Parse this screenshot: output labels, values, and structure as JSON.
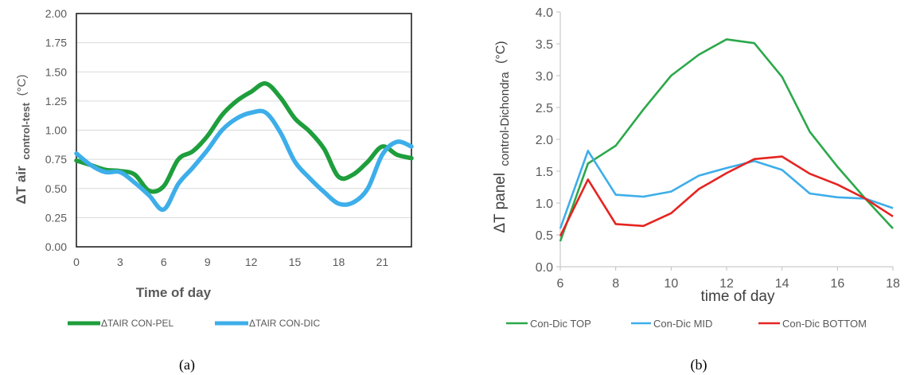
{
  "charts": [
    {
      "id": "a",
      "caption": "(a)",
      "chart_data": {
        "type": "line",
        "xlabel": "Time of day",
        "ylabel_main": "ΔT air",
        "ylabel_sub": "control-test",
        "ylabel_unit": "(°C)",
        "xlim": [
          0,
          23
        ],
        "ylim": [
          0,
          2
        ],
        "xticks": [
          0,
          3,
          6,
          9,
          12,
          15,
          18,
          21
        ],
        "xtick_labels": [
          "0",
          "3",
          "6",
          "9",
          "12",
          "15",
          "18",
          "21"
        ],
        "yticks": [
          0,
          0.25,
          0.5,
          0.75,
          1.0,
          1.25,
          1.5,
          1.75,
          2.0
        ],
        "ytick_labels": [
          "0.00",
          "0.25",
          "0.50",
          "0.75",
          "1.00",
          "1.25",
          "1.50",
          "1.75",
          "2.00"
        ],
        "grid": true,
        "legend_position": "bottom",
        "series": [
          {
            "name": "ΔTAIR CON-PEL",
            "color": "#1e9e3c",
            "x": [
              0,
              1,
              2,
              3,
              4,
              5,
              6,
              7,
              8,
              9,
              10,
              11,
              12,
              13,
              14,
              15,
              16,
              17,
              18,
              19,
              20,
              21,
              22,
              23
            ],
            "values": [
              0.74,
              0.7,
              0.66,
              0.65,
              0.62,
              0.48,
              0.52,
              0.75,
              0.82,
              0.95,
              1.13,
              1.25,
              1.33,
              1.4,
              1.28,
              1.1,
              0.99,
              0.84,
              0.6,
              0.62,
              0.73,
              0.86,
              0.79,
              0.76
            ]
          },
          {
            "name": "ΔTAIR CON-DIC",
            "color": "#3daee9",
            "x": [
              0,
              1,
              2,
              3,
              4,
              5,
              6,
              7,
              8,
              9,
              10,
              11,
              12,
              13,
              14,
              15,
              16,
              17,
              18,
              19,
              20,
              21,
              22,
              23
            ],
            "values": [
              0.8,
              0.7,
              0.64,
              0.64,
              0.55,
              0.44,
              0.32,
              0.54,
              0.68,
              0.83,
              1.0,
              1.1,
              1.15,
              1.15,
              0.98,
              0.73,
              0.59,
              0.47,
              0.37,
              0.38,
              0.5,
              0.79,
              0.9,
              0.86
            ]
          }
        ]
      }
    },
    {
      "id": "b",
      "caption": "(b)",
      "chart_data": {
        "type": "line",
        "xlabel": "time of day",
        "ylabel_main": "ΔT panel",
        "ylabel_sub": "control-Dichondra",
        "ylabel_unit": "(°C)",
        "xlim": [
          6,
          18
        ],
        "ylim": [
          0,
          4
        ],
        "xticks": [
          6,
          8,
          10,
          12,
          14,
          16,
          18
        ],
        "xtick_labels": [
          "6",
          "8",
          "10",
          "12",
          "14",
          "16",
          "18"
        ],
        "yticks": [
          0,
          0.5,
          1.0,
          1.5,
          2.0,
          2.5,
          3.0,
          3.5,
          4.0
        ],
        "ytick_labels": [
          "0.0",
          "0.5",
          "1.0",
          "1.5",
          "2.0",
          "2.5",
          "3.0",
          "3.5",
          "4.0"
        ],
        "grid": false,
        "legend_position": "bottom",
        "series": [
          {
            "name": "Con-Dic TOP",
            "color": "#2ca84a",
            "x": [
              6,
              7,
              8,
              9,
              10,
              11,
              12,
              13,
              14,
              15,
              16,
              17,
              18
            ],
            "values": [
              0.4,
              1.62,
              1.9,
              2.47,
              3.0,
              3.33,
              3.57,
              3.51,
              2.98,
              2.12,
              1.57,
              1.07,
              0.6
            ]
          },
          {
            "name": "Con-Dic MID",
            "color": "#3daee9",
            "x": [
              6,
              7,
              8,
              9,
              10,
              11,
              12,
              13,
              14,
              15,
              16,
              17,
              18
            ],
            "values": [
              0.6,
              1.82,
              1.13,
              1.1,
              1.18,
              1.43,
              1.55,
              1.66,
              1.52,
              1.15,
              1.09,
              1.07,
              0.92
            ]
          },
          {
            "name": "Con-Dic BOTTOM",
            "color": "#e52421",
            "x": [
              6,
              7,
              8,
              9,
              10,
              11,
              12,
              13,
              14,
              15,
              16,
              17,
              18
            ],
            "values": [
              0.48,
              1.37,
              0.67,
              0.64,
              0.84,
              1.22,
              1.47,
              1.69,
              1.73,
              1.46,
              1.29,
              1.07,
              0.79
            ]
          }
        ]
      }
    }
  ]
}
